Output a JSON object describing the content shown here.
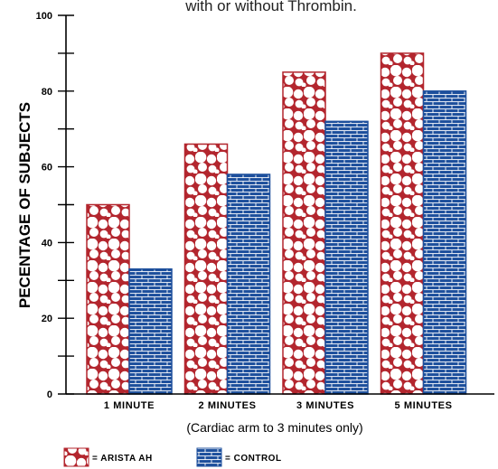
{
  "chart_data": {
    "type": "bar",
    "title": "with or without Thrombin.",
    "ylabel": "PECENTAGE OF SUBJECTS",
    "xnote": "(Cardiac arm to 3 minutes only)",
    "categories": [
      "1 MINUTE",
      "2 MINUTES",
      "3 MINUTES",
      "5 MINUTES"
    ],
    "series": [
      {
        "name": "= ARISTA AH",
        "values": [
          50,
          66,
          85,
          90
        ],
        "color": "#b3262e",
        "pattern": "circles"
      },
      {
        "name": "= CONTROL",
        "values": [
          33,
          58,
          72,
          80
        ],
        "color": "#1d4f9c",
        "pattern": "bricks"
      }
    ],
    "ylim": [
      0,
      100
    ],
    "yticks": [
      "0",
      "20",
      "40",
      "60",
      "80",
      "100"
    ],
    "grid": false,
    "legend_position": "bottom-left"
  }
}
